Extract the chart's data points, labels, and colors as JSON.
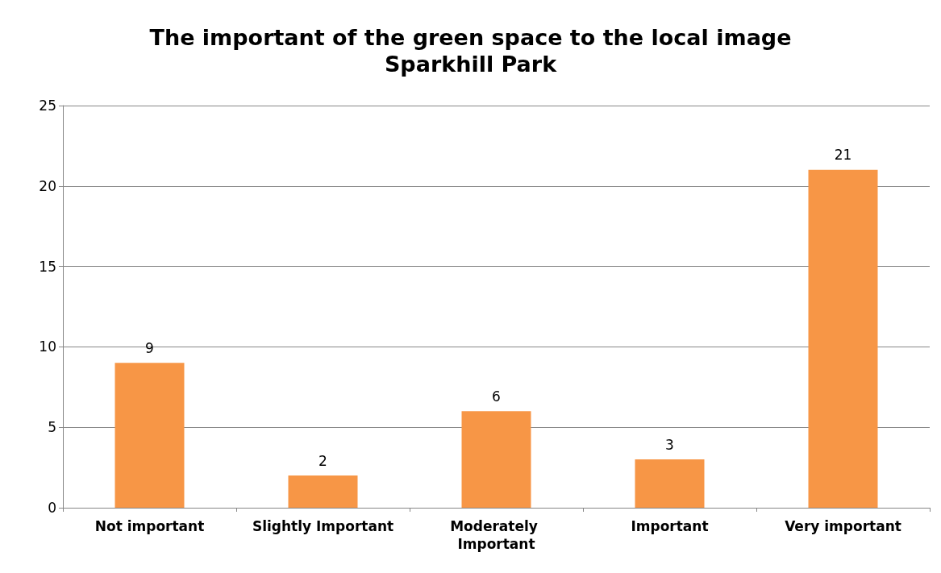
{
  "chart_data": {
    "type": "bar",
    "title": "The important of the green space to the local image",
    "subtitle": "Sparkhill Park",
    "categories": [
      "Not important",
      "Slightly Important",
      "Moderately Important",
      "Important",
      "Very important"
    ],
    "values": [
      9,
      2,
      6,
      3,
      21
    ],
    "color": "#f79646",
    "ylim": [
      0,
      25
    ],
    "yticks": [
      0,
      5,
      10,
      15,
      20,
      25
    ],
    "grid": "y",
    "data_labels": true
  }
}
